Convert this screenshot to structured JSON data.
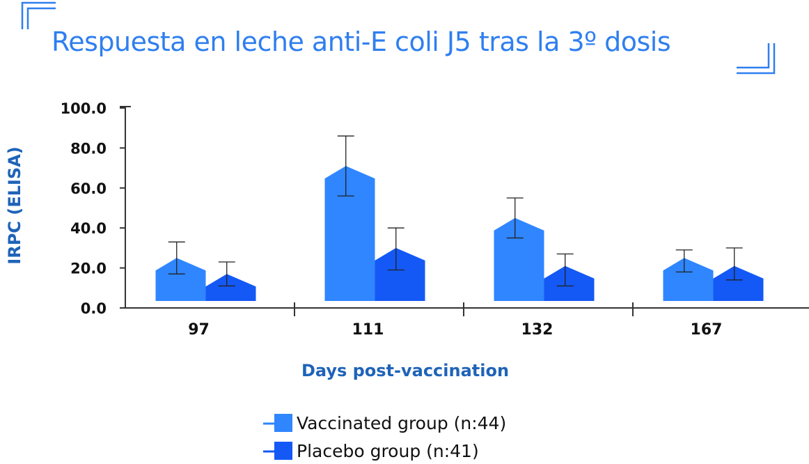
{
  "chart_data": {
    "type": "bar",
    "title": "Respuesta en leche anti-E coli J5 tras la 3º dosis",
    "xlabel": "Days post-vaccination",
    "ylabel": "IRPC (ELISA)",
    "ylim": [
      0,
      100
    ],
    "yticks": [
      "0.0",
      "20.0",
      "40.0",
      "60.0",
      "80.0",
      "100.0"
    ],
    "categories": [
      "97",
      "111",
      "132",
      "167"
    ],
    "series": [
      {
        "name": "Vaccinated group (n:44)",
        "color": "#2f86ff",
        "values": [
          25,
          71,
          45,
          25
        ],
        "err_low": [
          17,
          56,
          35,
          18
        ],
        "err_high": [
          33,
          86,
          55,
          29
        ]
      },
      {
        "name": "Placebo group (n:41)",
        "color": "#1459f5",
        "values": [
          17,
          30,
          21,
          21
        ],
        "err_low": [
          11,
          19,
          11,
          14
        ],
        "err_high": [
          23,
          40,
          27,
          30
        ]
      }
    ],
    "legend_position": "bottom-center",
    "grid": false
  }
}
